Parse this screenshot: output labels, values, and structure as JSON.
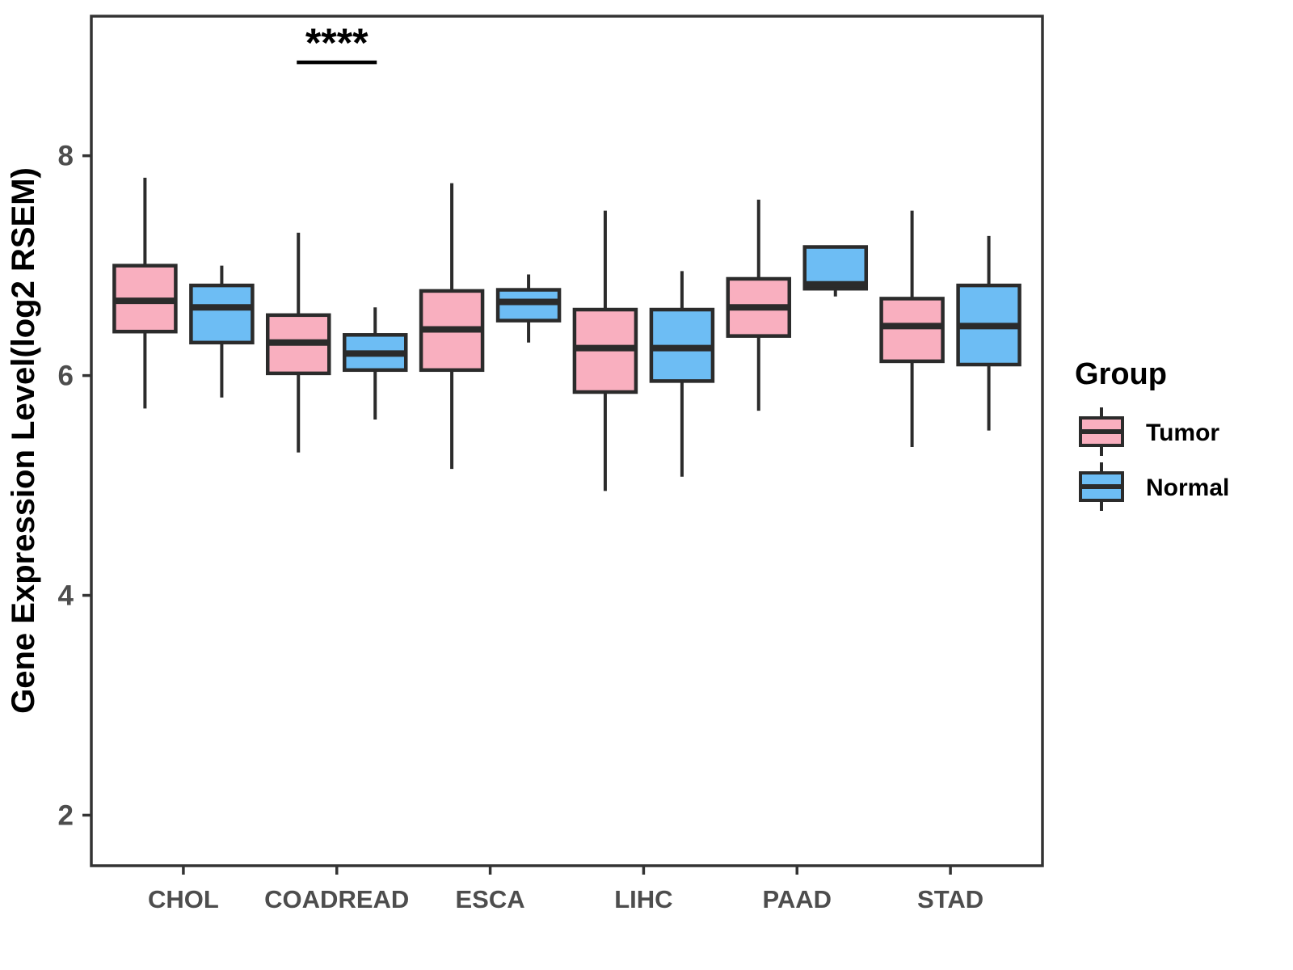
{
  "chart_data": {
    "type": "boxplot",
    "title": "",
    "xlabel": "",
    "ylabel": "Gene Expression Level(log2 RSEM)",
    "categories": [
      "CHOL",
      "COADREAD",
      "ESCA",
      "LIHC",
      "PAAD",
      "STAD"
    ],
    "yticks": [
      "2",
      "4",
      "6",
      "8"
    ],
    "ytick_values": [
      2,
      4,
      6,
      8
    ],
    "ylim": [
      1.54,
      9.27
    ],
    "grid": false,
    "legend_position": "right",
    "legend": {
      "title": "Group",
      "items": [
        {
          "label": "Tumor",
          "color": "#F9AFBF"
        },
        {
          "label": "Normal",
          "color": "#6DBDF4"
        }
      ]
    },
    "series": [
      {
        "name": "Tumor",
        "color": "#F9AFBF",
        "boxes": [
          {
            "category": "CHOL",
            "low": 5.7,
            "q1": 6.4,
            "median": 6.68,
            "q3": 7.0,
            "high": 7.8
          },
          {
            "category": "COADREAD",
            "low": 5.3,
            "q1": 6.02,
            "median": 6.3,
            "q3": 6.55,
            "high": 7.3
          },
          {
            "category": "ESCA",
            "low": 5.15,
            "q1": 6.05,
            "median": 6.42,
            "q3": 6.77,
            "high": 7.75
          },
          {
            "category": "LIHC",
            "low": 4.95,
            "q1": 5.85,
            "median": 6.25,
            "q3": 6.6,
            "high": 7.5
          },
          {
            "category": "PAAD",
            "low": 5.68,
            "q1": 6.36,
            "median": 6.62,
            "q3": 6.88,
            "high": 7.6
          },
          {
            "category": "STAD",
            "low": 5.35,
            "q1": 6.13,
            "median": 6.45,
            "q3": 6.7,
            "high": 7.5
          }
        ]
      },
      {
        "name": "Normal",
        "color": "#6DBDF4",
        "boxes": [
          {
            "category": "CHOL",
            "low": 5.8,
            "q1": 6.3,
            "median": 6.62,
            "q3": 6.82,
            "high": 7.0
          },
          {
            "category": "COADREAD",
            "low": 5.6,
            "q1": 6.05,
            "median": 6.2,
            "q3": 6.37,
            "high": 6.62
          },
          {
            "category": "ESCA",
            "low": 6.3,
            "q1": 6.5,
            "median": 6.67,
            "q3": 6.78,
            "high": 6.92
          },
          {
            "category": "LIHC",
            "low": 5.08,
            "q1": 5.95,
            "median": 6.25,
            "q3": 6.6,
            "high": 6.95
          },
          {
            "category": "PAAD",
            "low": 6.72,
            "q1": 6.79,
            "median": 6.83,
            "q3": 7.17,
            "high": 7.17
          },
          {
            "category": "STAD",
            "low": 5.5,
            "q1": 6.1,
            "median": 6.45,
            "q3": 6.82,
            "high": 7.27
          }
        ]
      }
    ],
    "annotations": [
      {
        "text": "****",
        "category": "COADREAD",
        "bar_y": 8.85,
        "underline": true
      }
    ],
    "styles": {
      "box_border_color": "#2b2b2b",
      "axis_color": "#333333",
      "tick_label_color": "#4d4d4d",
      "category_label_color": "#4d4d4d",
      "axis_title_color": "#000000",
      "annotation_color": "#000000"
    }
  }
}
